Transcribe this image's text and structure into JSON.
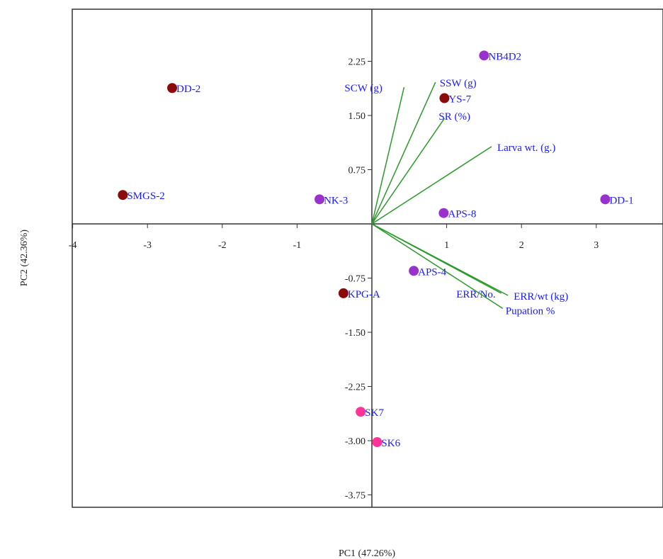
{
  "chart_data": {
    "type": "scatter",
    "subtype": "pca-biplot",
    "xlabel": "PC1 (47.26%)",
    "ylabel": "PC2 (42.36%)",
    "xlim": [
      -4,
      4
    ],
    "ylim": [
      -4.0,
      3.0
    ],
    "x_ticks": [
      -4,
      -3,
      -2,
      -1,
      1,
      2,
      3
    ],
    "x_tick_labels": [
      "-4",
      "-3",
      "-2",
      "-1",
      "1",
      "2",
      "3"
    ],
    "y_ticks": [
      2.25,
      1.5,
      0.75,
      -0.75,
      -1.5,
      -2.25,
      -3.0,
      -3.75
    ],
    "y_tick_labels": [
      "2.25",
      "1.50",
      "0.75",
      "-0.75",
      "-1.50",
      "-2.25",
      "-3.00",
      "-3.75"
    ],
    "grid": false,
    "colors": {
      "group_dark_red": "#8b0a0a",
      "group_purple": "#9932cc",
      "group_pink": "#ff3399",
      "label_text": "#1a1aff",
      "vector_line": "#2a9a2a",
      "axis_line": "#333333"
    },
    "points": [
      {
        "label": "DD-2",
        "x": -2.67,
        "y": 1.88,
        "group": "dark_red"
      },
      {
        "label": "SMGS-2",
        "x": -3.33,
        "y": 0.4,
        "group": "dark_red"
      },
      {
        "label": "NK-3",
        "x": -0.7,
        "y": 0.34,
        "group": "purple"
      },
      {
        "label": "NB4D2",
        "x": 1.5,
        "y": 2.33,
        "group": "purple"
      },
      {
        "label": "YS-7",
        "x": 0.97,
        "y": 1.74,
        "group": "dark_red"
      },
      {
        "label": "DD-1",
        "x": 3.12,
        "y": 0.34,
        "group": "purple"
      },
      {
        "label": "APS-8",
        "x": 0.96,
        "y": 0.15,
        "group": "purple"
      },
      {
        "label": "APS-4",
        "x": 0.56,
        "y": -0.65,
        "group": "purple"
      },
      {
        "label": "KPG-A",
        "x": -0.38,
        "y": -0.96,
        "group": "dark_red"
      },
      {
        "label": "SK7",
        "x": -0.15,
        "y": -2.6,
        "group": "pink"
      },
      {
        "label": "SK6",
        "x": 0.07,
        "y": -3.02,
        "group": "pink"
      }
    ],
    "vectors": [
      {
        "label": "SCW (g)",
        "x": 0.43,
        "y": 1.89
      },
      {
        "label": "SSW (g)",
        "x": 0.85,
        "y": 1.96
      },
      {
        "label": "SR (%)",
        "x": 0.97,
        "y": 1.46
      },
      {
        "label": "Larva wt. (g.)",
        "x": 1.6,
        "y": 1.07
      },
      {
        "label": "ERR/No.",
        "x": 1.73,
        "y": -0.96
      },
      {
        "label": "ERR/wt (kg)",
        "x": 1.82,
        "y": -0.99
      },
      {
        "label": "Pupation %",
        "x": 1.75,
        "y": -1.17
      }
    ]
  }
}
